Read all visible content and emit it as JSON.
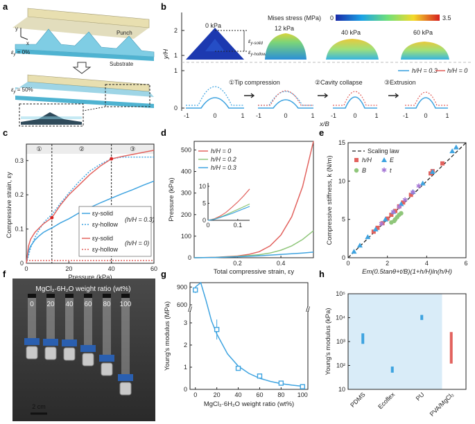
{
  "colors": {
    "blue": "#3ea3e0",
    "red": "#e2625e",
    "green": "#8fc67a",
    "purple": "#a779d6",
    "substrate": "#8ed5ea",
    "punch": "#e8dfb0",
    "bar": "#3ea3e0",
    "bar_red": "#e2625e",
    "shade": "#d9ecf8"
  },
  "panel_labels": [
    "a",
    "b",
    "c",
    "d",
    "e",
    "f",
    "g",
    "h"
  ],
  "panel_a": {
    "axis_y": "y",
    "axis_x": "x",
    "strain0": "ε",
    "strain0_sub": "y",
    "strain0_value": " = 0%",
    "strain50": "ε",
    "strain50_sub": "y",
    "strain50_value": " = 50%",
    "punch": "Punch",
    "substrate": "Substrate"
  },
  "panel_b": {
    "colorbar_title": "Mises stress (MPa)",
    "colorbar_min": "0",
    "colorbar_max": "3.5",
    "pressures": [
      "0 kPa",
      "12 kPa",
      "40 kPa",
      "60 kPa"
    ],
    "eps_solid": "ε",
    "eps_solid_sub": "y-solid",
    "eps_hollow": "ε",
    "eps_hollow_sub": "y-hollow",
    "ylabel": "y/H",
    "xlabel": "x/B",
    "yticks": [
      "0",
      "1",
      "2"
    ],
    "xticks": [
      "-1",
      "0",
      "1"
    ],
    "steps": [
      "①Tip compression",
      "②Cavity collapse",
      "③Extrusion"
    ],
    "legend": [
      "h/H = 0.3",
      "h/H = 0"
    ]
  },
  "chart_data": [
    {
      "panel": "c",
      "type": "line",
      "xlabel": "Pressure (kPa)",
      "ylabel": "Compressive strain, εy",
      "xlim": [
        0,
        60
      ],
      "ylim": [
        0,
        0.34
      ],
      "xticks": [
        0,
        20,
        40,
        60
      ],
      "yticks": [
        0,
        0.1,
        0.2,
        0.3
      ],
      "stage_boundaries": [
        12,
        40
      ],
      "stage_labels": [
        "①",
        "②",
        "③"
      ],
      "legend_group_labels": [
        "(h/H = 0.3)",
        "(h/H = 0)"
      ],
      "series": [
        {
          "name": "εy-solid (h/H = 0.3)",
          "color": "#3ea3e0",
          "dash": false,
          "x": [
            0,
            1,
            2,
            4,
            6,
            8,
            10,
            12,
            16,
            20,
            25,
            30,
            35,
            40,
            45,
            50,
            55,
            60
          ],
          "y": [
            0,
            0.035,
            0.05,
            0.068,
            0.08,
            0.09,
            0.097,
            0.103,
            0.118,
            0.13,
            0.148,
            0.163,
            0.177,
            0.19,
            0.203,
            0.215,
            0.228,
            0.24
          ]
        },
        {
          "name": "εy-hollow (h/H = 0.3)",
          "color": "#3ea3e0",
          "dash": true,
          "x": [
            0,
            2,
            4,
            6,
            8,
            10,
            12,
            16,
            20,
            25,
            30,
            35,
            40,
            45,
            50,
            55,
            60
          ],
          "y": [
            0,
            0.045,
            0.075,
            0.098,
            0.117,
            0.131,
            0.142,
            0.175,
            0.205,
            0.24,
            0.27,
            0.29,
            0.305,
            0.31,
            0.31,
            0.31,
            0.31
          ]
        },
        {
          "name": "εy-solid (h/H = 0)",
          "color": "#e2625e",
          "dash": false,
          "x": [
            0,
            1,
            2,
            4,
            6,
            8,
            10,
            12,
            16,
            20,
            25,
            30,
            35,
            40,
            45,
            50,
            55,
            60
          ],
          "y": [
            0,
            0.05,
            0.07,
            0.09,
            0.103,
            0.115,
            0.124,
            0.133,
            0.17,
            0.2,
            0.23,
            0.26,
            0.285,
            0.305,
            0.312,
            0.318,
            0.324,
            0.33
          ]
        },
        {
          "name": "εy-hollow (h/H = 0)",
          "color": "#e2625e",
          "dash": true,
          "x": [
            0,
            60
          ],
          "y": [
            0.008,
            0.008
          ]
        }
      ],
      "markers": [
        {
          "x": 12,
          "y": 0.133
        },
        {
          "x": 40,
          "y": 0.305
        }
      ]
    },
    {
      "panel": "d",
      "type": "line",
      "xlabel": "Total compressive strain, εy",
      "ylabel": "Pressure (kPa)",
      "xlim": [
        0,
        0.55
      ],
      "ylim": [
        0,
        540
      ],
      "xticks": [
        0.2,
        0.4
      ],
      "yticks": [
        0,
        100,
        200,
        300,
        400,
        500
      ],
      "series": [
        {
          "name": "h/H = 0",
          "color": "#e2625e",
          "x": [
            0,
            0.1,
            0.2,
            0.25,
            0.3,
            0.35,
            0.4,
            0.45,
            0.5,
            0.55
          ],
          "y": [
            0,
            2,
            8,
            15,
            28,
            55,
            105,
            190,
            330,
            540
          ]
        },
        {
          "name": "h/H = 0.2",
          "color": "#8fc67a",
          "x": [
            0,
            0.1,
            0.2,
            0.3,
            0.35,
            0.4,
            0.45,
            0.5,
            0.55
          ],
          "y": [
            0,
            1.5,
            6,
            14,
            22,
            35,
            55,
            85,
            125
          ]
        },
        {
          "name": "h/H = 0.3",
          "color": "#3ea3e0",
          "x": [
            0,
            0.1,
            0.2,
            0.3,
            0.4,
            0.5,
            0.55
          ],
          "y": [
            0,
            1.3,
            4.5,
            9,
            15,
            22,
            26
          ]
        }
      ],
      "inset": {
        "xlim": [
          0,
          0.14
        ],
        "ylim": [
          0,
          11
        ],
        "xticks": [
          0,
          0.1
        ],
        "yticks": [
          0,
          5,
          10
        ],
        "series": [
          {
            "color": "#e2625e",
            "x": [
              0,
              0.02,
              0.04,
              0.06,
              0.08,
              0.1,
              0.12,
              0.14
            ],
            "y": [
              0,
              0.4,
              1.2,
              2.3,
              3.8,
              5.4,
              7.2,
              9.2
            ]
          },
          {
            "color": "#8fc67a",
            "x": [
              0,
              0.02,
              0.04,
              0.06,
              0.08,
              0.1,
              0.12,
              0.14
            ],
            "y": [
              0,
              0.3,
              0.9,
              1.6,
              2.4,
              3.2,
              4.0,
              4.8
            ]
          },
          {
            "color": "#3ea3e0",
            "x": [
              0,
              0.02,
              0.04,
              0.06,
              0.08,
              0.1,
              0.12,
              0.14
            ],
            "y": [
              0,
              0.25,
              0.8,
              1.4,
              2.0,
              2.7,
              3.4,
              4.1
            ]
          }
        ]
      }
    },
    {
      "panel": "e",
      "type": "scatter",
      "xlabel": "Em(0.5tanθ+t/B)(1+h/H)ln(h/H)",
      "ylabel": "Compressive stiffness, k (N/m)",
      "xlim": [
        0,
        6
      ],
      "ylim": [
        0,
        15
      ],
      "xticks": [
        0,
        2,
        4,
        6
      ],
      "yticks": [
        0,
        5,
        10,
        15
      ],
      "scaling_law": {
        "name": "Scaling law",
        "x": [
          0,
          6
        ],
        "y": [
          0,
          15.6
        ]
      },
      "series": [
        {
          "name": "h/H",
          "marker": "square",
          "color": "#e2625e",
          "x": [
            1.3,
            1.5,
            1.75,
            2.0,
            2.2,
            2.4,
            2.6,
            2.8,
            3.2,
            4.2,
            4.3,
            4.8
          ],
          "y": [
            3.4,
            3.9,
            4.5,
            5.1,
            5.6,
            6.1,
            6.7,
            7.2,
            8.2,
            11.0,
            11.3,
            12.3
          ]
        },
        {
          "name": "E",
          "marker": "triangle",
          "color": "#3ea3e0",
          "x": [
            0.3,
            0.6,
            1.0,
            1.4,
            1.9,
            2.3,
            2.7,
            3.3,
            3.8,
            4.3,
            5.3,
            5.5
          ],
          "y": [
            0.8,
            1.6,
            2.7,
            3.7,
            5.0,
            6.0,
            7.0,
            8.6,
            9.7,
            11.2,
            13.9,
            14.4
          ]
        },
        {
          "name": "B",
          "marker": "circle",
          "color": "#8fc67a",
          "x": [
            2.2,
            2.35,
            2.4,
            2.5,
            2.6,
            2.7
          ],
          "y": [
            4.6,
            4.8,
            5.0,
            5.3,
            5.6,
            5.8
          ]
        },
        {
          "name": "t",
          "marker": "star",
          "color": "#a779d6",
          "x": [
            1.7,
            2.3,
            2.6,
            2.9,
            3.3,
            3.6
          ],
          "y": [
            4.4,
            5.9,
            6.6,
            7.5,
            8.5,
            9.3
          ]
        }
      ]
    },
    {
      "panel": "g",
      "type": "scatter",
      "xlabel": "MgCl₂·6H₂O weight ratio (wt%)",
      "ylabel": "Young's modulus (MPa)",
      "xlim": [
        -5,
        105
      ],
      "xticks": [
        0,
        20,
        40,
        60,
        80,
        100
      ],
      "yticks_upper": [
        600,
        900
      ],
      "yticks_lower": [
        0,
        1,
        2,
        3
      ],
      "axis_break": true,
      "series": [
        {
          "name": "Young's modulus",
          "x": [
            0,
            20,
            40,
            60,
            80,
            100
          ],
          "y": [
            850,
            2.7,
            0.95,
            0.6,
            0.28,
            0.12
          ],
          "err": [
            50,
            0.45,
            0.1,
            0.08,
            0.05,
            0.04
          ]
        }
      ],
      "fit": {
        "x": [
          0,
          5,
          10,
          15,
          20,
          30,
          40,
          50,
          60,
          70,
          80,
          90,
          100
        ],
        "y": [
          900,
          10,
          4.0,
          3.1,
          2.5,
          1.6,
          1.05,
          0.72,
          0.5,
          0.36,
          0.26,
          0.19,
          0.14
        ]
      }
    },
    {
      "panel": "h",
      "type": "bar",
      "ylabel": "Young's modulus (kPa)",
      "yscale": "log",
      "ylim": [
        10,
        100000
      ],
      "yticks": [
        "10",
        "10²",
        "10³",
        "10⁴",
        "10⁵"
      ],
      "categories": [
        "PDMS",
        "Ecoflex",
        "PU",
        "PVA/MgCl₂"
      ],
      "ranges": [
        [
          800,
          2200
        ],
        [
          50,
          90
        ],
        [
          8000,
          13000
        ],
        [
          120,
          2500
        ]
      ],
      "colors": [
        "#3ea3e0",
        "#3ea3e0",
        "#3ea3e0",
        "#e2625e"
      ],
      "shaded_categories": 3
    }
  ],
  "panel_f": {
    "title": "MgCl₂·6H₂O weight ratio (wt%)",
    "ratios": [
      "0",
      "20",
      "40",
      "60",
      "80",
      "100"
    ],
    "scale_bar": "2 cm"
  }
}
